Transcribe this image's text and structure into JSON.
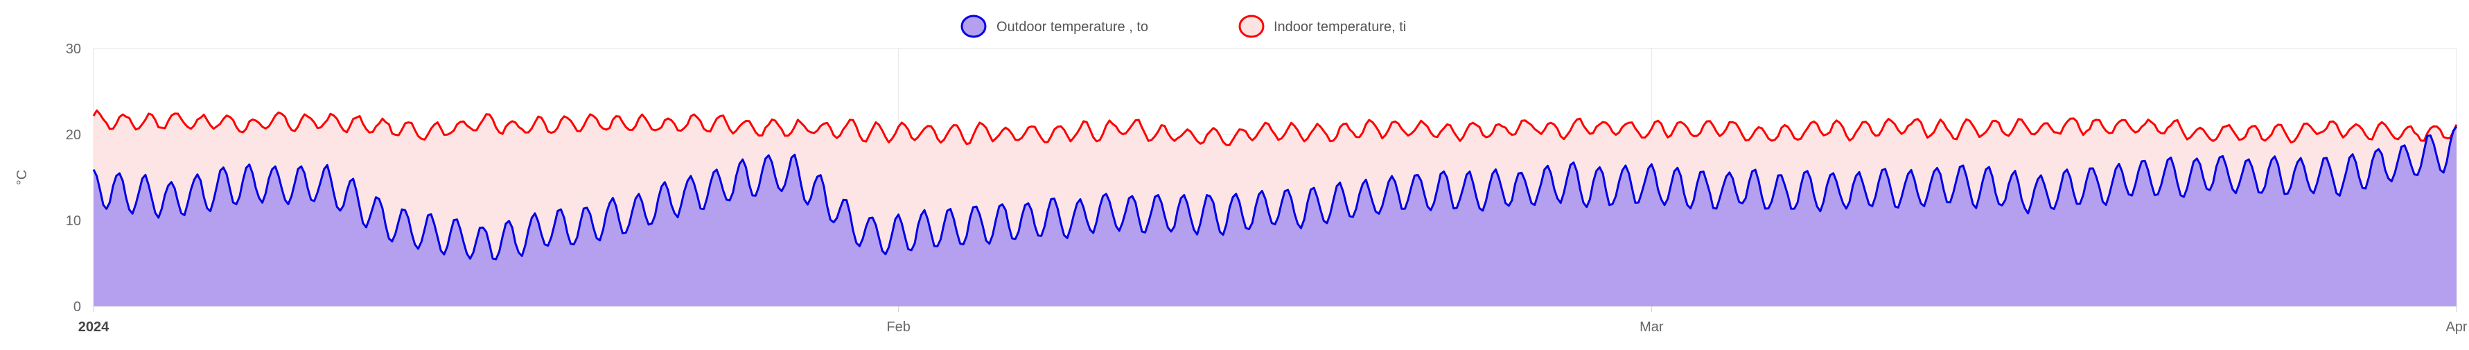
{
  "chart_data": {
    "type": "area",
    "ylabel": "°C",
    "ylim": [
      0,
      30
    ],
    "yticks": [
      "0",
      "10",
      "20",
      "30"
    ],
    "xlim": [
      "2024-01-01",
      "2024-04-01"
    ],
    "xticks": [
      {
        "label": "2024",
        "date": "2024-01-01",
        "bold": true
      },
      {
        "label": "Feb",
        "date": "2024-02-01",
        "bold": false
      },
      {
        "label": "Mar",
        "date": "2024-03-01",
        "bold": false
      },
      {
        "label": "Apr",
        "date": "2024-04-01",
        "bold": false
      }
    ],
    "grid": true,
    "legend_position": "top-center",
    "series": [
      {
        "name": "Indoor temperature, ti",
        "color": "#ff0000",
        "fill": "#fde2e2",
        "x": [
          "2024-01-01",
          "2024-01-04",
          "2024-01-07",
          "2024-01-10",
          "2024-01-13",
          "2024-01-16",
          "2024-01-19",
          "2024-01-22",
          "2024-01-25",
          "2024-01-28",
          "2024-01-31",
          "2024-02-03",
          "2024-02-06",
          "2024-02-09",
          "2024-02-12",
          "2024-02-15",
          "2024-02-18",
          "2024-02-21",
          "2024-02-24",
          "2024-02-27",
          "2024-03-01",
          "2024-03-04",
          "2024-03-07",
          "2024-03-10",
          "2024-03-13",
          "2024-03-16",
          "2024-03-19",
          "2024-03-22",
          "2024-03-25",
          "2024-03-28",
          "2024-04-01"
        ],
        "y": [
          21.5,
          21.8,
          21.2,
          21.5,
          20.5,
          21.3,
          21.0,
          21.2,
          21.3,
          20.8,
          20.4,
          20.2,
          20.3,
          20.5,
          20.0,
          20.4,
          20.4,
          20.6,
          20.5,
          20.7,
          20.6,
          20.4,
          20.8,
          20.6,
          20.7,
          21.0,
          21.2,
          20.2,
          20.2,
          20.5,
          20.3
        ]
      },
      {
        "name": "Outdoor temperature , to",
        "color": "#0000e6",
        "fill": "#b4a0ee",
        "x": [
          "2024-01-01",
          "2024-01-04",
          "2024-01-07",
          "2024-01-10",
          "2024-01-13",
          "2024-01-16",
          "2024-01-19",
          "2024-01-22",
          "2024-01-25",
          "2024-01-28",
          "2024-01-31",
          "2024-02-03",
          "2024-02-06",
          "2024-02-09",
          "2024-02-12",
          "2024-02-15",
          "2024-02-18",
          "2024-02-21",
          "2024-02-24",
          "2024-02-27",
          "2024-03-01",
          "2024-03-04",
          "2024-03-07",
          "2024-03-10",
          "2024-03-13",
          "2024-03-16",
          "2024-03-19",
          "2024-03-22",
          "2024-03-25",
          "2024-03-28",
          "2024-04-01"
        ],
        "y": [
          14.0,
          12.5,
          14.5,
          14.0,
          9.0,
          7.5,
          9.0,
          11.0,
          14.0,
          15.5,
          8.0,
          9.5,
          10.0,
          11.0,
          10.5,
          11.0,
          12.0,
          13.5,
          13.5,
          14.0,
          14.0,
          13.5,
          13.5,
          13.5,
          14.5,
          13.0,
          14.5,
          15.5,
          15.0,
          15.5,
          18.5
        ]
      }
    ]
  }
}
